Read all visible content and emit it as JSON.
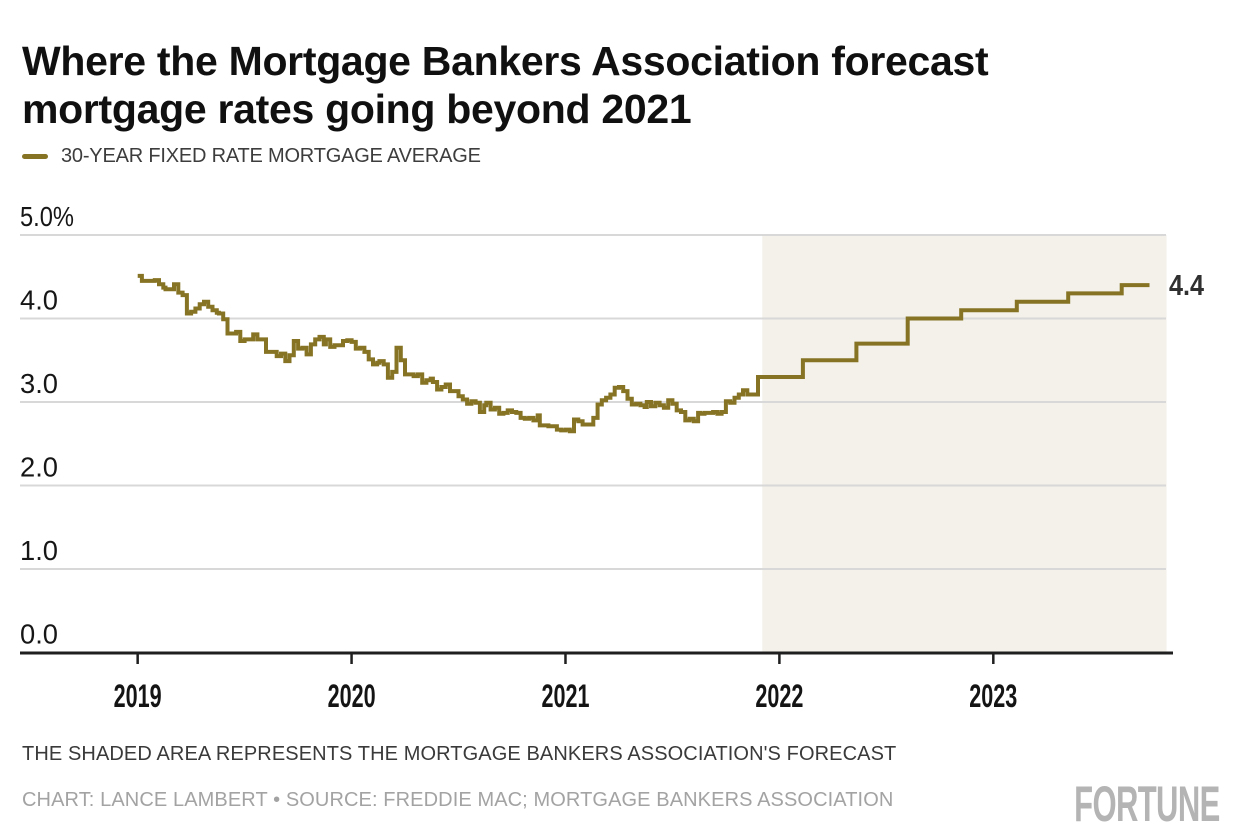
{
  "header": {
    "title": "Where the Mortgage Bankers Association forecast mortgage rates going beyond 2021",
    "lines": [
      "Where the Mortgage Bankers Association forecast",
      "mortgage rates going beyond 2021"
    ]
  },
  "legend": {
    "label": "30-YEAR FIXED RATE MORTGAGE AVERAGE"
  },
  "footnote": {
    "text": "THE SHADED AREA REPRESENTS THE MORTGAGE BANKERS ASSOCIATION'S FORECAST"
  },
  "credit": {
    "text": "CHART: LANCE LAMBERT • SOURCE: FREDDIE MAC; MORTGAGE BANKERS ASSOCIATION"
  },
  "brand": {
    "logo_text": "FORTUNE"
  },
  "colors": {
    "line": "#867424",
    "shade": "#f3f1ea",
    "grid": "#d8d8d8",
    "axis": "#1f1f1f",
    "tick_text": "#141414",
    "y_text": "#161616",
    "end_label": "#303030",
    "title": "#101010",
    "footnote": "#3a3a3a",
    "credit": "#a3a3a3",
    "logo": "#b4b4b4"
  },
  "chart_data": {
    "type": "line",
    "step": true,
    "title": "Where the Mortgage Bankers Association forecast mortgage rates going beyond 2021",
    "xlabel": "",
    "ylabel": "30-year fixed rate mortgage average (%)",
    "xlim": [
      2018.45,
      2023.84
    ],
    "ylim": [
      0,
      5
    ],
    "grid": true,
    "legend_position": "top-left",
    "end_label": "4.4",
    "end_x": 2023.73,
    "yticks": [
      {
        "value": 5.0,
        "label": "5.0%"
      },
      {
        "value": 4.0,
        "label": "4.0"
      },
      {
        "value": 3.0,
        "label": "3.0"
      },
      {
        "value": 2.0,
        "label": "2.0"
      },
      {
        "value": 1.0,
        "label": "1.0"
      },
      {
        "value": 0.0,
        "label": "0.0"
      }
    ],
    "xticks": [
      {
        "value": 2019,
        "label": "2019"
      },
      {
        "value": 2020,
        "label": "2020"
      },
      {
        "value": 2021,
        "label": "2021"
      },
      {
        "value": 2022,
        "label": "2022"
      },
      {
        "value": 2023,
        "label": "2023"
      }
    ],
    "forecast_shade": {
      "x_start": 2021.92,
      "x_end": 2023.81,
      "note": "Mortgage Bankers Association's forecast"
    },
    "series": [
      {
        "name": "30-YEAR FIXED RATE MORTGAGE AVERAGE",
        "color": "#867424",
        "actual": [
          [
            2019.0,
            4.51
          ],
          [
            2019.02,
            4.45
          ],
          [
            2019.04,
            4.45
          ],
          [
            2019.06,
            4.45
          ],
          [
            2019.08,
            4.46
          ],
          [
            2019.1,
            4.41
          ],
          [
            2019.12,
            4.37
          ],
          [
            2019.13,
            4.35
          ],
          [
            2019.15,
            4.35
          ],
          [
            2019.17,
            4.41
          ],
          [
            2019.19,
            4.31
          ],
          [
            2019.21,
            4.28
          ],
          [
            2019.23,
            4.06
          ],
          [
            2019.25,
            4.08
          ],
          [
            2019.27,
            4.12
          ],
          [
            2019.29,
            4.17
          ],
          [
            2019.31,
            4.2
          ],
          [
            2019.33,
            4.14
          ],
          [
            2019.35,
            4.1
          ],
          [
            2019.37,
            4.07
          ],
          [
            2019.38,
            4.06
          ],
          [
            2019.4,
            3.99
          ],
          [
            2019.42,
            3.82
          ],
          [
            2019.44,
            3.82
          ],
          [
            2019.46,
            3.84
          ],
          [
            2019.48,
            3.73
          ],
          [
            2019.5,
            3.75
          ],
          [
            2019.52,
            3.75
          ],
          [
            2019.54,
            3.81
          ],
          [
            2019.56,
            3.75
          ],
          [
            2019.58,
            3.75
          ],
          [
            2019.6,
            3.6
          ],
          [
            2019.63,
            3.6
          ],
          [
            2019.65,
            3.55
          ],
          [
            2019.67,
            3.58
          ],
          [
            2019.69,
            3.49
          ],
          [
            2019.71,
            3.56
          ],
          [
            2019.73,
            3.73
          ],
          [
            2019.75,
            3.64
          ],
          [
            2019.77,
            3.65
          ],
          [
            2019.79,
            3.57
          ],
          [
            2019.81,
            3.69
          ],
          [
            2019.83,
            3.75
          ],
          [
            2019.85,
            3.78
          ],
          [
            2019.87,
            3.69
          ],
          [
            2019.88,
            3.75
          ],
          [
            2019.9,
            3.66
          ],
          [
            2019.92,
            3.68
          ],
          [
            2019.94,
            3.68
          ],
          [
            2019.96,
            3.73
          ],
          [
            2019.98,
            3.74
          ],
          [
            2020.0,
            3.72
          ],
          [
            2020.02,
            3.64
          ],
          [
            2020.04,
            3.65
          ],
          [
            2020.06,
            3.6
          ],
          [
            2020.08,
            3.51
          ],
          [
            2020.1,
            3.45
          ],
          [
            2020.12,
            3.47
          ],
          [
            2020.13,
            3.49
          ],
          [
            2020.15,
            3.45
          ],
          [
            2020.17,
            3.29
          ],
          [
            2020.19,
            3.36
          ],
          [
            2020.21,
            3.65
          ],
          [
            2020.23,
            3.5
          ],
          [
            2020.25,
            3.33
          ],
          [
            2020.27,
            3.33
          ],
          [
            2020.29,
            3.31
          ],
          [
            2020.31,
            3.33
          ],
          [
            2020.33,
            3.23
          ],
          [
            2020.35,
            3.26
          ],
          [
            2020.37,
            3.28
          ],
          [
            2020.38,
            3.24
          ],
          [
            2020.4,
            3.15
          ],
          [
            2020.42,
            3.18
          ],
          [
            2020.44,
            3.21
          ],
          [
            2020.46,
            3.13
          ],
          [
            2020.48,
            3.13
          ],
          [
            2020.5,
            3.07
          ],
          [
            2020.52,
            3.03
          ],
          [
            2020.54,
            2.98
          ],
          [
            2020.56,
            3.01
          ],
          [
            2020.58,
            2.99
          ],
          [
            2020.6,
            2.88
          ],
          [
            2020.62,
            2.96
          ],
          [
            2020.63,
            2.99
          ],
          [
            2020.65,
            2.91
          ],
          [
            2020.67,
            2.93
          ],
          [
            2020.69,
            2.86
          ],
          [
            2020.71,
            2.87
          ],
          [
            2020.73,
            2.9
          ],
          [
            2020.75,
            2.88
          ],
          [
            2020.77,
            2.87
          ],
          [
            2020.79,
            2.81
          ],
          [
            2020.81,
            2.8
          ],
          [
            2020.83,
            2.81
          ],
          [
            2020.85,
            2.78
          ],
          [
            2020.87,
            2.84
          ],
          [
            2020.88,
            2.72
          ],
          [
            2020.9,
            2.72
          ],
          [
            2020.92,
            2.71
          ],
          [
            2020.94,
            2.71
          ],
          [
            2020.96,
            2.67
          ],
          [
            2020.98,
            2.66
          ],
          [
            2021.0,
            2.67
          ],
          [
            2021.02,
            2.65
          ],
          [
            2021.04,
            2.79
          ],
          [
            2021.06,
            2.77
          ],
          [
            2021.08,
            2.73
          ],
          [
            2021.1,
            2.73
          ],
          [
            2021.12,
            2.73
          ],
          [
            2021.13,
            2.81
          ],
          [
            2021.15,
            2.97
          ],
          [
            2021.17,
            3.02
          ],
          [
            2021.19,
            3.05
          ],
          [
            2021.21,
            3.09
          ],
          [
            2021.23,
            3.17
          ],
          [
            2021.25,
            3.18
          ],
          [
            2021.27,
            3.13
          ],
          [
            2021.29,
            3.04
          ],
          [
            2021.31,
            2.97
          ],
          [
            2021.33,
            2.98
          ],
          [
            2021.35,
            2.96
          ],
          [
            2021.37,
            2.94
          ],
          [
            2021.38,
            3.0
          ],
          [
            2021.4,
            2.95
          ],
          [
            2021.42,
            2.99
          ],
          [
            2021.44,
            2.96
          ],
          [
            2021.46,
            2.93
          ],
          [
            2021.48,
            3.02
          ],
          [
            2021.5,
            2.98
          ],
          [
            2021.52,
            2.9
          ],
          [
            2021.54,
            2.88
          ],
          [
            2021.56,
            2.78
          ],
          [
            2021.58,
            2.8
          ],
          [
            2021.6,
            2.77
          ],
          [
            2021.62,
            2.87
          ],
          [
            2021.63,
            2.86
          ],
          [
            2021.65,
            2.87
          ],
          [
            2021.67,
            2.87
          ],
          [
            2021.69,
            2.88
          ],
          [
            2021.71,
            2.86
          ],
          [
            2021.73,
            2.88
          ],
          [
            2021.75,
            3.01
          ],
          [
            2021.77,
            2.99
          ],
          [
            2021.79,
            3.05
          ],
          [
            2021.81,
            3.09
          ],
          [
            2021.83,
            3.14
          ],
          [
            2021.85,
            3.09
          ]
        ],
        "forecast": [
          [
            2021.9,
            3.3
          ],
          [
            2022.11,
            3.5
          ],
          [
            2022.36,
            3.7
          ],
          [
            2022.6,
            4.0
          ],
          [
            2022.85,
            4.1
          ],
          [
            2023.11,
            4.2
          ],
          [
            2023.35,
            4.3
          ],
          [
            2023.6,
            4.4
          ]
        ]
      }
    ]
  }
}
